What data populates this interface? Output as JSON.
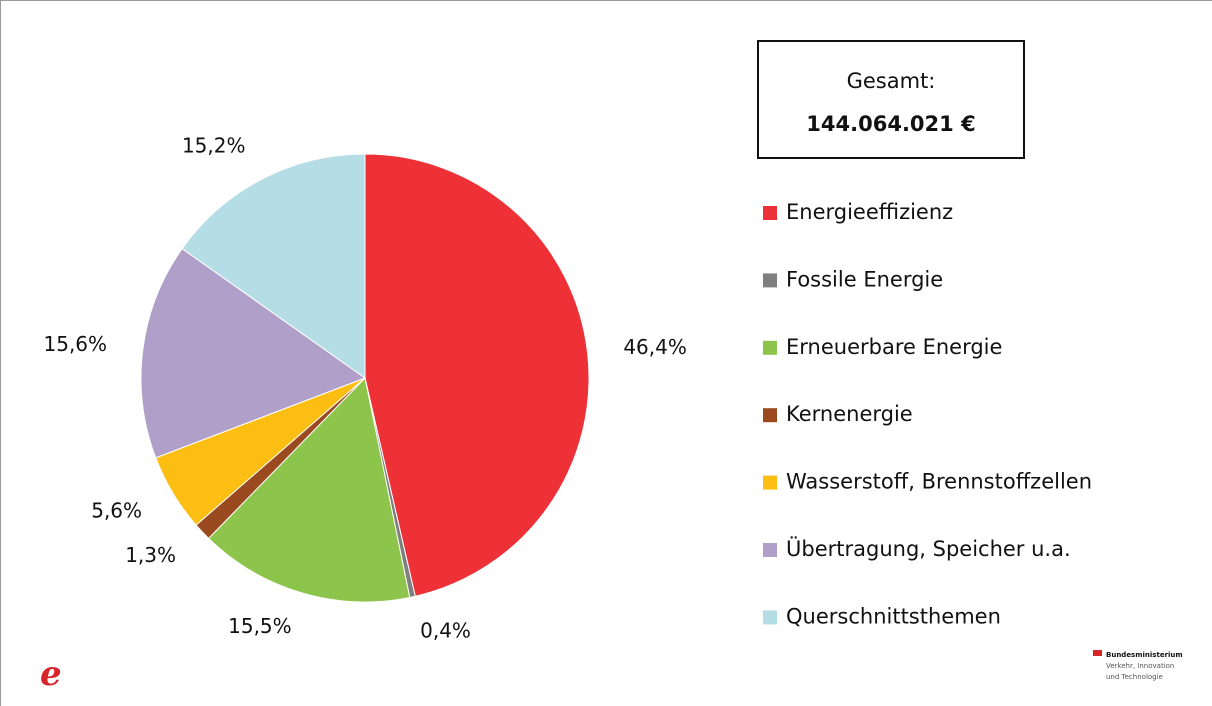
{
  "chart_data": {
    "type": "pie",
    "categories": [
      "Energieeffizienz",
      "Fossile Energie",
      "Erneuerbare Energie",
      "Kernenergie",
      "Wasserstoff, Brennstoffzellen",
      "Übertragung, Speicher u.a.",
      "Querschnittsthemen"
    ],
    "values": [
      46.4,
      0.4,
      15.5,
      1.3,
      5.6,
      15.6,
      15.2
    ],
    "value_labels": [
      "46,4%",
      "0,4%",
      "15,5%",
      "1,3%",
      "5,6%",
      "15,6%",
      "15,2%"
    ],
    "colors": [
      "#ee3136",
      "#7f7f7f",
      "#8dc44b",
      "#9b4a1f",
      "#fdbe13",
      "#b09fc8",
      "#b5dde6"
    ],
    "total_box": [
      "Gesamt:",
      "144.064.021 €"
    ],
    "legend": "right"
  },
  "logo": {
    "left": "e",
    "right": [
      "Bundesministerium",
      "Verkehr, Innovation",
      "und Technologie"
    ]
  }
}
